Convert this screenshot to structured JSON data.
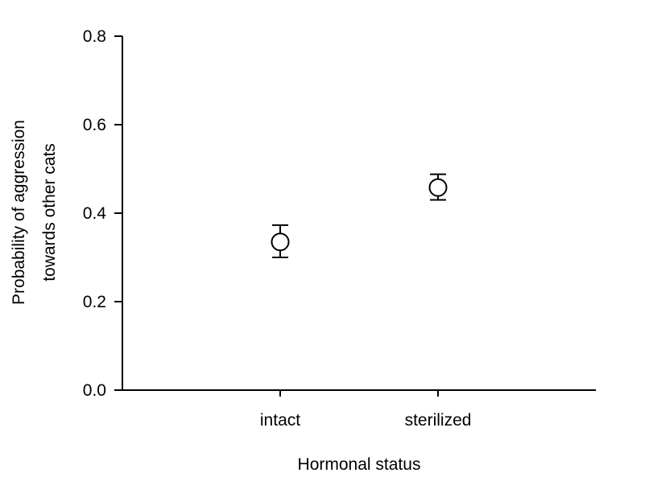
{
  "chart_data": {
    "type": "scatter",
    "title": "",
    "xlabel": "Hormonal status",
    "ylabel": [
      "Probability of aggression",
      "towards other cats"
    ],
    "categories": [
      "intact",
      "sterilized"
    ],
    "ylim": [
      0,
      0.8
    ],
    "yticks": [
      "0.0",
      "0.2",
      "0.4",
      "0.6",
      "0.8"
    ],
    "ytick_values": [
      0,
      0.2,
      0.4,
      0.6,
      0.8
    ],
    "grid": false,
    "legend": "none",
    "marker": "open-circle",
    "series": [
      {
        "values": [
          0.335,
          0.458
        ],
        "error_low": [
          0.3,
          0.43
        ],
        "error_high": [
          0.373,
          0.488
        ]
      }
    ],
    "colors": {
      "marker_stroke": "#000000",
      "marker_fill": "#ffffff",
      "axis": "#000000"
    }
  }
}
